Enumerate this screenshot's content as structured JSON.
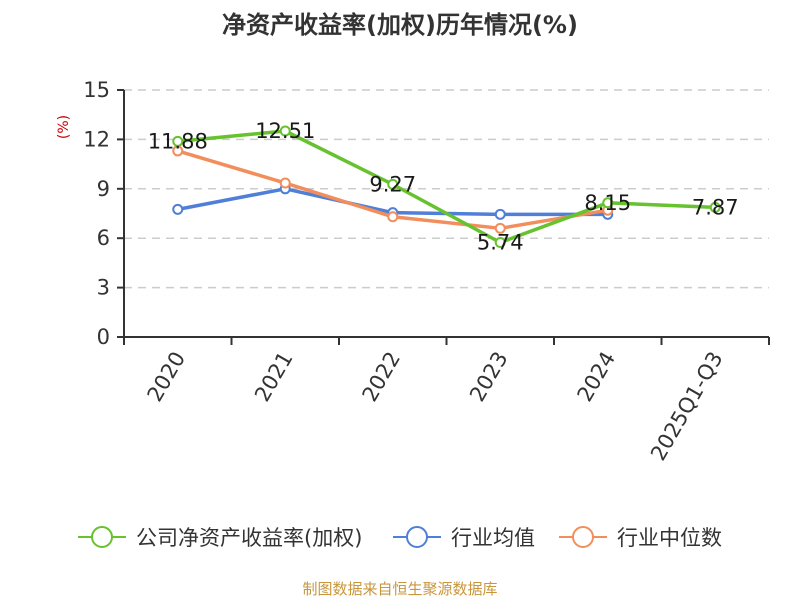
{
  "chart_data": {
    "type": "line",
    "title": "净资产收益率(加权)历年情况(%)",
    "ylabel": "(%)",
    "xlabel": "",
    "ylim": [
      0,
      15
    ],
    "yticks": [
      0,
      3,
      6,
      9,
      12,
      15
    ],
    "grid": true,
    "categories": [
      "2020",
      "2021",
      "2022",
      "2023",
      "2024",
      "2025Q1-Q3"
    ],
    "series": [
      {
        "name": "公司净资产收益率(加权)",
        "color": "#66c22e",
        "values": [
          11.88,
          12.51,
          9.27,
          5.74,
          8.15,
          7.87
        ],
        "labels": [
          "11.88",
          "12.51",
          "9.27",
          "5.74",
          "8.15",
          "7.87"
        ]
      },
      {
        "name": "行业均值",
        "color": "#4f7fd8",
        "values": [
          7.75,
          9.0,
          7.55,
          7.45,
          7.45,
          null
        ]
      },
      {
        "name": "行业中位数",
        "color": "#f28e5c",
        "values": [
          11.3,
          9.35,
          7.3,
          6.6,
          7.7,
          null
        ]
      }
    ],
    "legend_position": "bottom",
    "source": "制图数据来自恒生聚源数据库",
    "unit_color": "#cc0000",
    "source_color": "#c8963c",
    "axis_color": "#333333",
    "grid_color": "#cccccc"
  }
}
